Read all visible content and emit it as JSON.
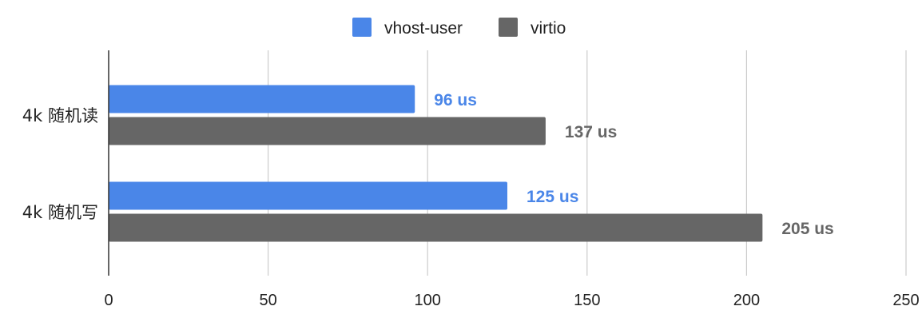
{
  "chart_data": {
    "type": "bar",
    "orientation": "horizontal",
    "categories": [
      "4k 随机读",
      "4k 随机写"
    ],
    "series": [
      {
        "name": "vhost-user",
        "values": [
          96,
          125
        ],
        "labels": [
          "96 us",
          "125 us"
        ],
        "color": "#4a86e8"
      },
      {
        "name": "virtio",
        "values": [
          137,
          205
        ],
        "labels": [
          "137 us",
          "205 us"
        ],
        "color": "#666666"
      }
    ],
    "xlim": [
      0,
      250
    ],
    "xticks": [
      0,
      50,
      100,
      150,
      200,
      250
    ],
    "xtick_labels": [
      "0",
      "50",
      "100",
      "150",
      "200",
      "250"
    ],
    "title": "",
    "xlabel": "",
    "ylabel": "",
    "grid": true,
    "legend_position": "top-center"
  }
}
